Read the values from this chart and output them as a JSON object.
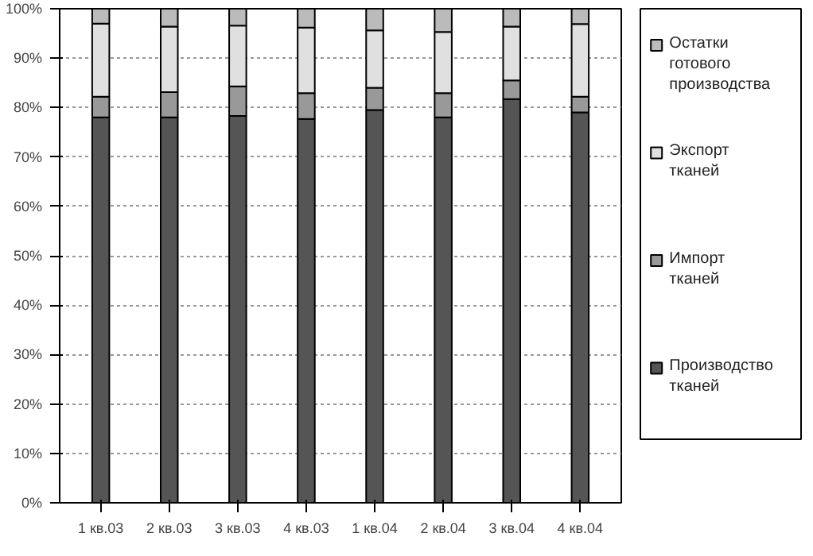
{
  "chart_data": {
    "type": "bar",
    "stacked": true,
    "categories": [
      "1 кв.03",
      "2 кв.03",
      "3 кв.03",
      "4 кв.03",
      "1 кв.04",
      "2 кв.04",
      "3 кв.04",
      "4 кв.04"
    ],
    "series": [
      {
        "name": "Производство тканей",
        "color": "#555555",
        "values": [
          78,
          78,
          78.3,
          77.7,
          79.5,
          78,
          81.7,
          79
        ]
      },
      {
        "name": "Импорт тканей",
        "color": "#999999",
        "values": [
          4.2,
          5.1,
          6,
          5.2,
          4.5,
          4.9,
          3.8,
          3.2
        ]
      },
      {
        "name": "Экспорт тканей",
        "color": "#e0e0e0",
        "values": [
          14.8,
          13.3,
          12.3,
          13.3,
          11.6,
          12.4,
          10.9,
          14.7
        ]
      },
      {
        "name": "Остатки готового производства",
        "color": "#bbbbbb",
        "values": [
          3,
          3.6,
          3.4,
          3.8,
          4.4,
          4.7,
          3.6,
          3.1
        ]
      }
    ],
    "ylim": [
      0,
      100
    ],
    "yticks": [
      {
        "value": 0,
        "label": "0%"
      },
      {
        "value": 10,
        "label": "10%"
      },
      {
        "value": 20,
        "label": "20%"
      },
      {
        "value": 30,
        "label": "30%"
      },
      {
        "value": 40,
        "label": "40%"
      },
      {
        "value": 50,
        "label": "50%"
      },
      {
        "value": 60,
        "label": "60%"
      },
      {
        "value": 70,
        "label": "70%"
      },
      {
        "value": 80,
        "label": "80%"
      },
      {
        "value": 90,
        "label": "90%"
      },
      {
        "value": 100,
        "label": "100%"
      }
    ],
    "grid": "y",
    "legend": "right"
  }
}
